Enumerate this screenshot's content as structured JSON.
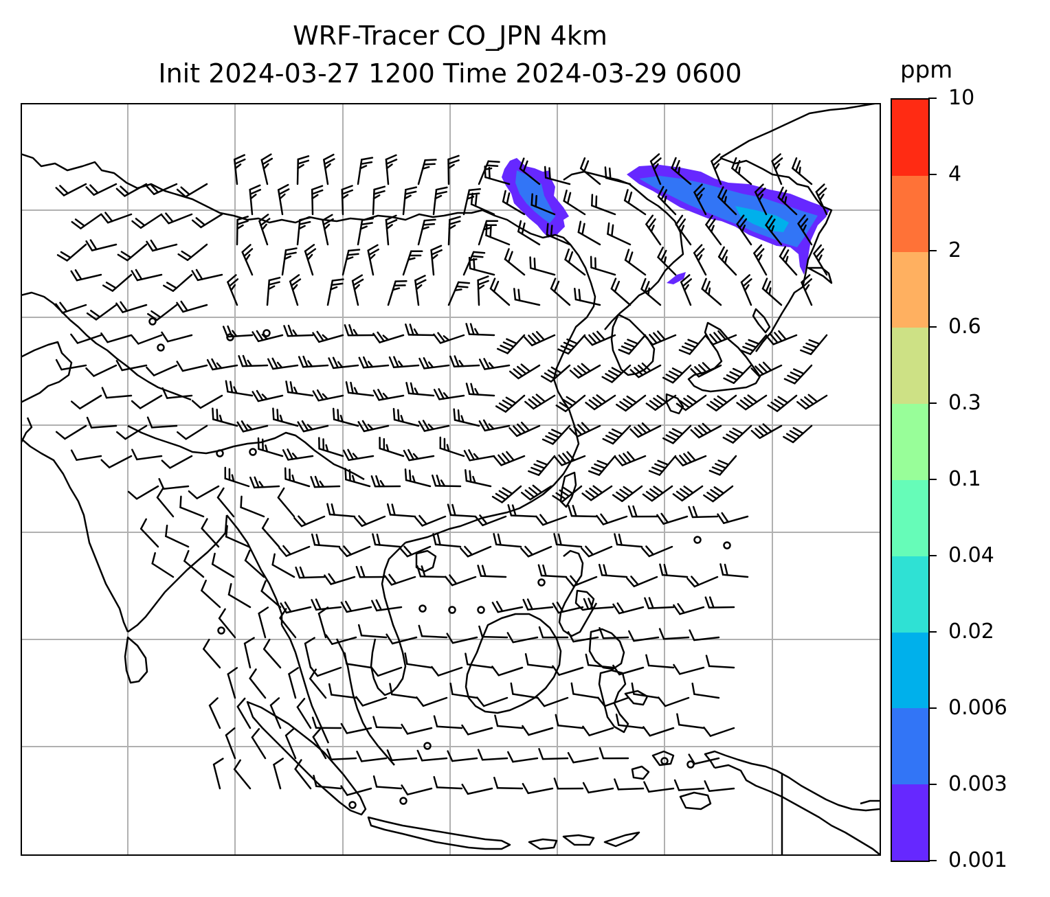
{
  "title": {
    "line1": "WRF-Tracer CO_JPN 4km",
    "line2": "Init 2024-03-27 1200 Time 2024-03-29 0600"
  },
  "colorbar": {
    "unit_label": "ppm",
    "levels": [
      "0.001",
      "0.003",
      "0.006",
      "0.02",
      "0.04",
      "0.1",
      "0.3",
      "0.6",
      "2",
      "4",
      "10"
    ],
    "colors": [
      "#6628ff",
      "#3275f6",
      "#00b0eb",
      "#2fe1d4",
      "#66fcb8",
      "#98fe99",
      "#cde185",
      "#ffb060",
      "#ff7237",
      "#ff2b13"
    ]
  },
  "map": {
    "background": "#ffffff",
    "coastline_color": "#000000",
    "gridline_color": "#b0b0b0",
    "barb_color": "#000000"
  }
}
